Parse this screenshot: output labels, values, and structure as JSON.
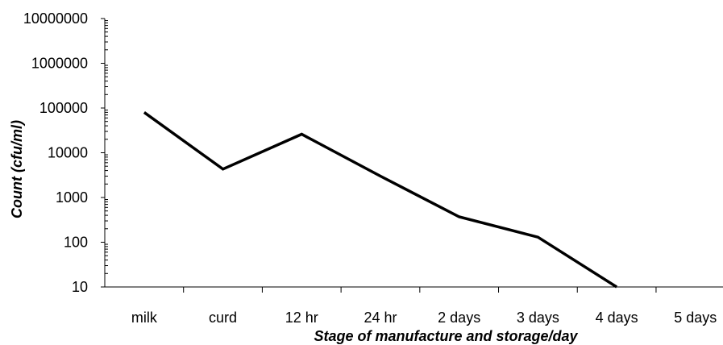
{
  "chart_data": {
    "type": "line",
    "title": "",
    "xlabel": "Stage of manufacture and storage/day",
    "ylabel": "Count (cfu/ml)",
    "y_scale": "log",
    "ylim": [
      10,
      10000000
    ],
    "grid": false,
    "categories": [
      "milk",
      "curd",
      "12 hr",
      "24 hr",
      "2 days",
      "3 days",
      "4 days",
      "5 days"
    ],
    "y_tick_labels": [
      "10000000",
      "1000000",
      "100000",
      "10000",
      "1000",
      "100",
      "10"
    ],
    "series": [
      {
        "values": [
          80000,
          4300,
          26000,
          3000,
          370,
          130,
          10,
          null
        ]
      }
    ],
    "line_color": "#000000"
  }
}
